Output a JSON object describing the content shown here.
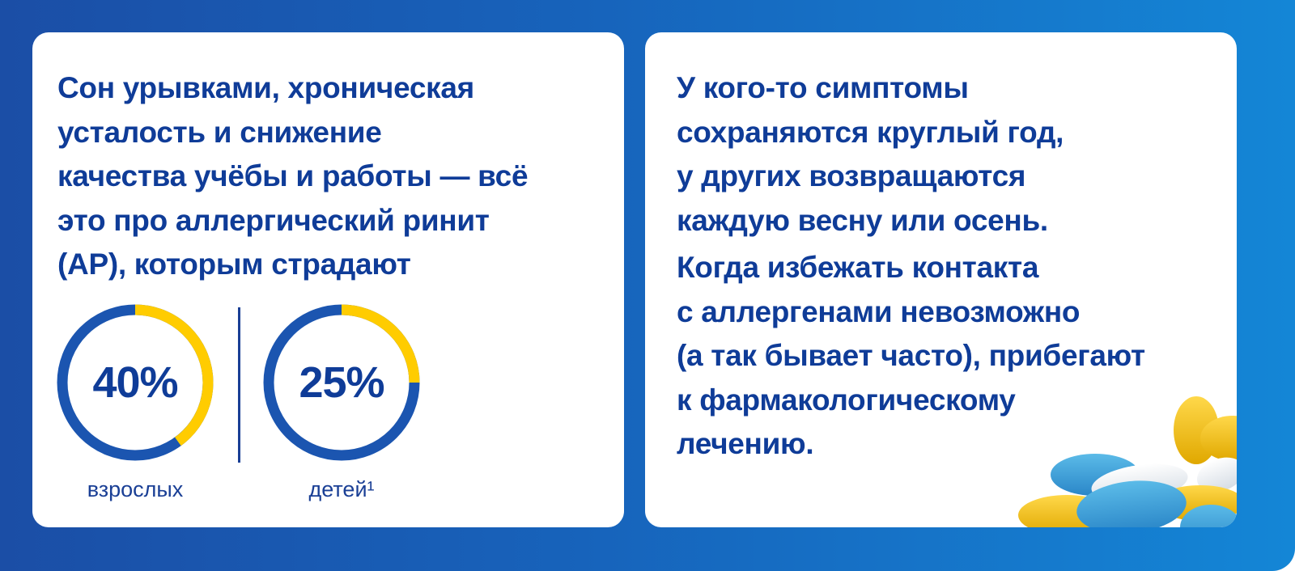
{
  "left_card": {
    "text": "Сон урывками, хроническая\nусталость и снижение\nкачества учёбы и работы — всё\nэто про аллергический ринит\n(АР), которым страдают",
    "stats": [
      {
        "value": "40%",
        "percent": 40,
        "label": "взрослых"
      },
      {
        "value": "25%",
        "percent": 25,
        "label": "детей¹"
      }
    ]
  },
  "right_card": {
    "paragraph_1": "У кого-то симптомы\nсохраняются круглый год,\nу других возвращаются\nкаждую весну или осень.",
    "paragraph_2": "Когда избежать контакта\nс аллергенами невозможно\n(а так бывает часто), прибегают\nк фармакологическому\nлечению.",
    "image": "pills-illustration"
  },
  "colors": {
    "ring_main": "#1b55b0",
    "ring_accent": "#ffcc00",
    "text": "#0f3c98"
  }
}
